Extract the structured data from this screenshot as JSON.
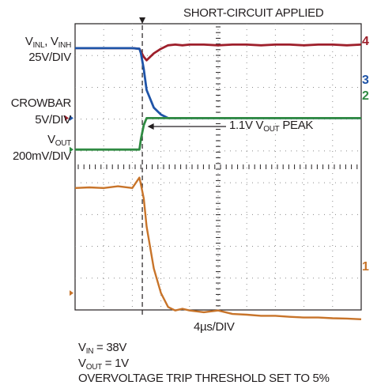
{
  "chart_data": {
    "type": "line",
    "title": "",
    "xlabel": "4µs/DIV",
    "time_per_div_us": 4,
    "divisions_x": 10,
    "divisions_y": 8,
    "grid": true,
    "grid_style": "dotted",
    "x_us": [
      0,
      2,
      4,
      6,
      8,
      9.0,
      9.2,
      9.6,
      10,
      11,
      12,
      13,
      14,
      15,
      16,
      18,
      20,
      22,
      24,
      26,
      28,
      30,
      32,
      34,
      36,
      38,
      40
    ],
    "channels": [
      {
        "number": "4",
        "label_line1_main": "V",
        "label_line1_sub": "INL",
        "label_line1_sep": ", V",
        "label_line1_sub2": "INH",
        "label_line2": "25V/DIV",
        "color": "#9e1f2b",
        "y_div": [
          0.2,
          0.2,
          0.2,
          0.2,
          0.2,
          0.22,
          0.3,
          0.45,
          0.55,
          0.35,
          0.22,
          0.12,
          0.1,
          0.12,
          0.1,
          0.1,
          0.12,
          0.1,
          0.1,
          0.12,
          0.1,
          0.1,
          0.12,
          0.1,
          0.1,
          0.12,
          0.1
        ]
      },
      {
        "number": "3",
        "label_line1_main": "",
        "label_line2": "",
        "color": "#1f54a8",
        "y_div": [
          0.2,
          0.2,
          0.2,
          0.2,
          0.2,
          0.22,
          0.35,
          0.8,
          1.4,
          1.9,
          2.1,
          2.2,
          2.2,
          2.2,
          2.2,
          2.2,
          2.2,
          2.2,
          2.2,
          2.2,
          2.2,
          2.2,
          2.2,
          2.2,
          2.2,
          2.2,
          2.2
        ]
      },
      {
        "number": "2",
        "label_line1_main": "CROWBAR",
        "label_line2": "5V/DIV",
        "color": "#2f8a42",
        "y_div": [
          3.1,
          3.1,
          3.1,
          3.1,
          3.1,
          3.1,
          2.8,
          2.4,
          2.2,
          2.2,
          2.2,
          2.2,
          2.2,
          2.2,
          2.2,
          2.2,
          2.2,
          2.2,
          2.2,
          2.2,
          2.2,
          2.2,
          2.2,
          2.2,
          2.2,
          2.2,
          2.2
        ]
      },
      {
        "number": "1",
        "label_line1_main": "V",
        "label_line1_sub": "OUT",
        "label_line2": "200mV/DIV",
        "color": "#c8742a",
        "y_div": [
          4.2,
          4.18,
          4.2,
          4.15,
          4.2,
          3.9,
          4.1,
          4.5,
          5.3,
          6.5,
          7.2,
          7.6,
          7.7,
          7.65,
          7.7,
          7.75,
          7.7,
          7.8,
          7.82,
          7.85,
          7.85,
          7.88,
          7.9,
          7.9,
          7.92,
          7.93,
          7.95
        ]
      }
    ],
    "annotations": {
      "event_time_us": 9.4,
      "event_label": "SHORT-CIRCUIT APPLIED",
      "peak_label_prefix": "1.1V V",
      "peak_label_sub": "OUT",
      "peak_label_suffix": " PEAK",
      "peak_time_us": 9.9,
      "peak_div": 3.9
    },
    "conditions": [
      {
        "main": "V",
        "sub": "IN",
        "rest": " = 38V"
      },
      {
        "main": "V",
        "sub": "OUT",
        "rest": " = 1V"
      },
      {
        "main": "OVERVOLTAGE TRIP THRESHOLD SET TO 5%",
        "sub": "",
        "rest": ""
      }
    ],
    "ground_markers": [
      {
        "color": "#1f54a8",
        "div": 2.2
      },
      {
        "color": "#9e1f2b",
        "div": 2.2
      },
      {
        "color": "#2f8a42",
        "div": 3.1
      },
      {
        "color": "#c8742a",
        "div": 7.2
      }
    ]
  }
}
